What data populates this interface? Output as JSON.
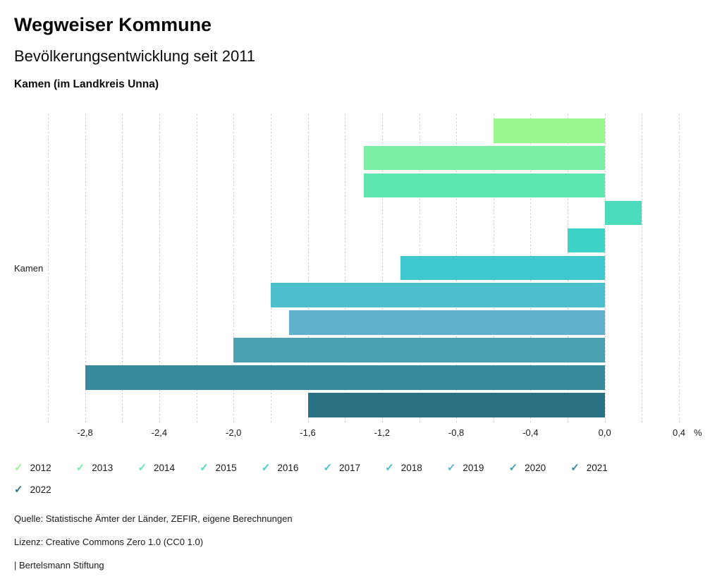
{
  "header": {
    "title": "Wegweiser Kommune",
    "subtitle": "Bevölkerungsentwicklung seit 2011",
    "region": "Kamen (im Landkreis Unna)"
  },
  "chart_data": {
    "type": "bar",
    "orientation": "horizontal",
    "group_label": "Kamen",
    "categories": [
      "2012",
      "2013",
      "2014",
      "2015",
      "2016",
      "2017",
      "2018",
      "2019",
      "2020",
      "2021",
      "2022"
    ],
    "values": [
      -0.6,
      -1.3,
      -1.3,
      0.2,
      -0.2,
      -1.1,
      -1.8,
      -1.7,
      -2.0,
      -2.8,
      -1.6
    ],
    "colors": [
      "#9af78f",
      "#7cefa4",
      "#5fe7b2",
      "#4cdcbd",
      "#3ed3c9",
      "#3fc9ce",
      "#4bbfcb",
      "#5fb2c9",
      "#4a9fb0",
      "#398a9d",
      "#2a7183"
    ],
    "unit": "%",
    "xlim": [
      -3.0,
      0.4
    ],
    "grid_step": 0.2,
    "grid": true,
    "gridline_color": "#c9c9c9",
    "tick_values": [
      -2.8,
      -2.4,
      -2.0,
      -1.6,
      -1.2,
      -0.8,
      -0.4,
      0.0,
      0.4
    ],
    "tick_labels": [
      "-2,8",
      "-2,4",
      "-2,0",
      "-1,6",
      "-1,2",
      "-0,8",
      "-0,4",
      "0,0",
      "0,4"
    ],
    "legend_position": "bottom"
  },
  "legend": {
    "check_glyph": "✓",
    "items": [
      {
        "label": "2012",
        "color": "#9af78f"
      },
      {
        "label": "2013",
        "color": "#7cefa4"
      },
      {
        "label": "2014",
        "color": "#5fe7b2"
      },
      {
        "label": "2015",
        "color": "#4cdcbd"
      },
      {
        "label": "2016",
        "color": "#3ed3c9"
      },
      {
        "label": "2017",
        "color": "#3fc9ce"
      },
      {
        "label": "2018",
        "color": "#4bbfcb"
      },
      {
        "label": "2019",
        "color": "#5fb2c9"
      },
      {
        "label": "2020",
        "color": "#4a9fb0"
      },
      {
        "label": "2021",
        "color": "#398a9d"
      },
      {
        "label": "2022",
        "color": "#2a7183"
      }
    ]
  },
  "footer": {
    "source": "Quelle: Statistische Ämter der Länder, ZEFIR, eigene Berechnungen",
    "license": "Lizenz: Creative Commons Zero 1.0 (CC0 1.0)",
    "brand": "| Bertelsmann Stiftung"
  }
}
